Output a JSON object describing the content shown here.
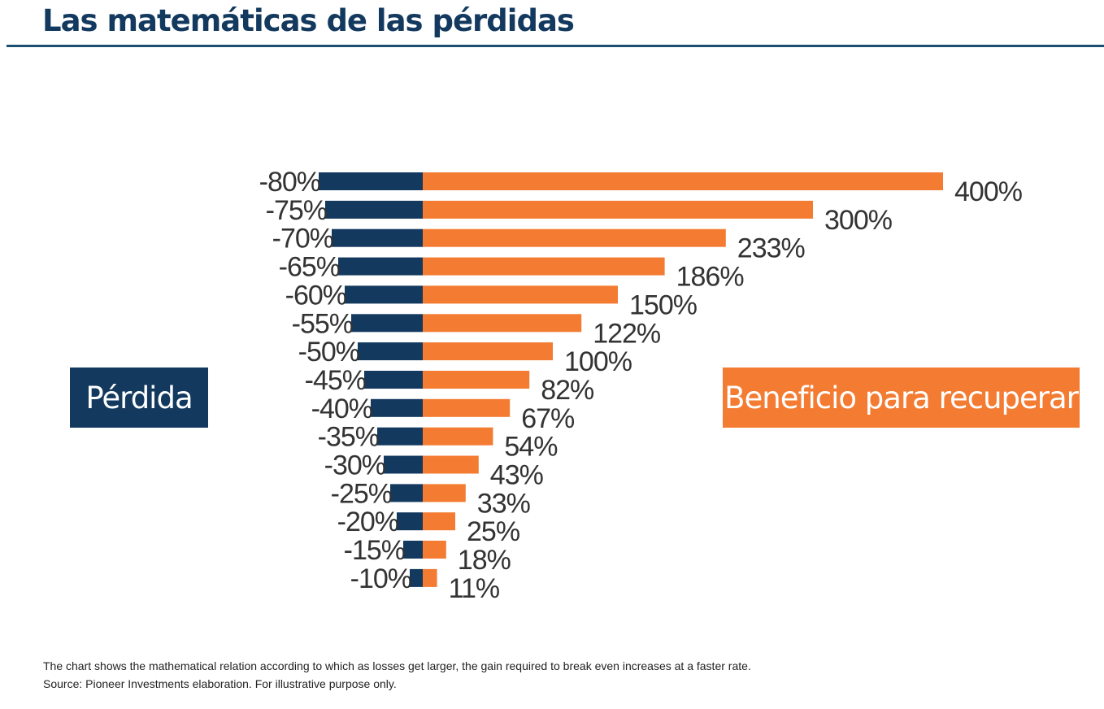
{
  "title": "Las matemáticas de las pérdidas",
  "legend": {
    "loss_label": "Pérdida",
    "gain_label": "Beneficio para recuperar"
  },
  "footnotes": {
    "line1": "The chart shows the mathematical relation according to which as losses get larger, the gain required to break even increases at a faster rate.",
    "line2": "Source: Pioneer Investments elaboration. For illustrative purpose only."
  },
  "colors": {
    "loss": "#13395f",
    "gain": "#f47b32",
    "title": "#13395f",
    "rule": "#1b4f6f"
  },
  "chart_data": {
    "type": "bar",
    "orientation": "horizontal-diverging",
    "categories": [
      "-80%",
      "-75%",
      "-70%",
      "-65%",
      "-60%",
      "-55%",
      "-50%",
      "-45%",
      "-40%",
      "-35%",
      "-30%",
      "-25%",
      "-20%",
      "-15%",
      "-10%"
    ],
    "series": [
      {
        "name": "Pérdida",
        "values": [
          -80,
          -75,
          -70,
          -65,
          -60,
          -55,
          -50,
          -45,
          -40,
          -35,
          -30,
          -25,
          -20,
          -15,
          -10
        ],
        "labels": [
          "-80%",
          "-75%",
          "-70%",
          "-65%",
          "-60%",
          "-55%",
          "-50%",
          "-45%",
          "-40%",
          "-35%",
          "-30%",
          "-25%",
          "-20%",
          "-15%",
          "-10%"
        ]
      },
      {
        "name": "Beneficio para recuperar",
        "values": [
          400,
          300,
          233,
          186,
          150,
          122,
          100,
          82,
          67,
          54,
          43,
          33,
          25,
          18,
          11
        ],
        "labels": [
          "400%",
          "300%",
          "233%",
          "186%",
          "150%",
          "122%",
          "100%",
          "82%",
          "67%",
          "54%",
          "43%",
          "33%",
          "25%",
          "18%",
          "11%"
        ]
      }
    ],
    "title": "Las matemáticas de las pérdidas",
    "xlabel": "",
    "ylabel": "",
    "grid": false,
    "legend": "left and right of the chart"
  }
}
